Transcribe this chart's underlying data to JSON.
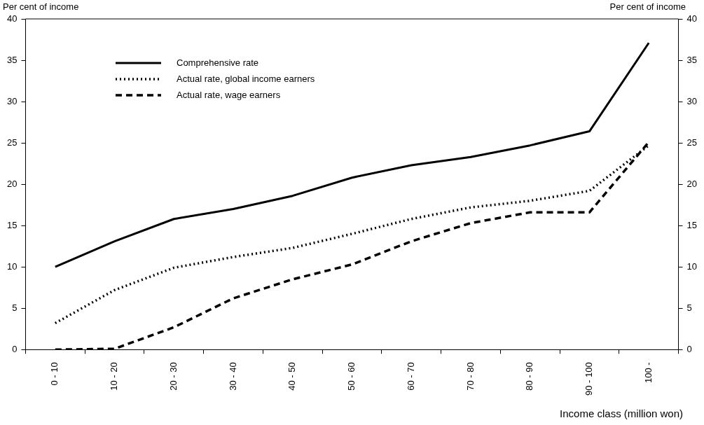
{
  "chart_data": {
    "type": "line",
    "xlabel": "Income class (million won)",
    "ylabel": "Per cent of income",
    "y2label": "Per cent of income",
    "categories": [
      "0 - 10",
      "10 - 20",
      "20 - 30",
      "30 - 40",
      "40 - 50",
      "50 - 60",
      "60 - 70",
      "70 - 80",
      "80 - 90",
      "90 - 100",
      "100 -"
    ],
    "series": [
      {
        "name": "Comprehensive rate",
        "color": "#000000",
        "line_style": "solid",
        "values": [
          10,
          13.1,
          15.8,
          17.0,
          18.6,
          20.8,
          22.3,
          23.3,
          24.7,
          26.4,
          37.1
        ]
      },
      {
        "name": "Actual rate, global income earners",
        "color": "#000000",
        "line_style": "dotted",
        "values": [
          3.2,
          7.2,
          9.9,
          11.2,
          12.3,
          14.0,
          15.8,
          17.2,
          18.0,
          19.2,
          24.7
        ]
      },
      {
        "name": "Actual rate, wage earners",
        "color": "#000000",
        "line_style": "dashed",
        "values": [
          0,
          0.1,
          2.7,
          6.2,
          8.5,
          10.3,
          13.1,
          15.3,
          16.6,
          16.6,
          25.1
        ]
      }
    ],
    "ylim": [
      0,
      40
    ],
    "yticks": [
      0,
      5,
      10,
      15,
      20,
      25,
      30,
      35,
      40
    ],
    "y2lim": [
      0,
      40
    ],
    "y2ticks": [
      0,
      5,
      10,
      15,
      20,
      25,
      30,
      35,
      40
    ],
    "legend": "top left"
  }
}
